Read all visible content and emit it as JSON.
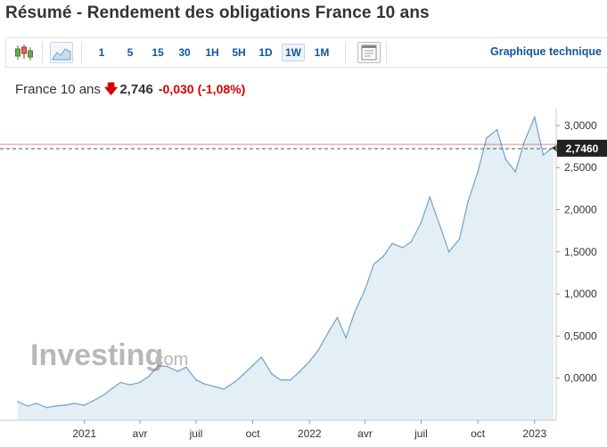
{
  "page_title": "Résumé - Rendement des obligations France 10 ans",
  "toolbar": {
    "candle_icon": "candlestick-chart-icon",
    "area_icon": "area-chart-icon",
    "periods": [
      "1",
      "5",
      "15",
      "30",
      "1H",
      "5H",
      "1D",
      "1W",
      "1M"
    ],
    "active_period": "1W",
    "doc_icon": "document-icon",
    "tech_link": "Graphique technique"
  },
  "quote": {
    "name": "France 10 ans",
    "arrow": "🡇",
    "last": "2,746",
    "change": "-0,030",
    "change_pct": "(-1,08%)"
  },
  "watermark": {
    "brand": "Investing",
    "suffix": ".com"
  },
  "colors": {
    "line": "#6ea3cf",
    "fill": "#e3eef5",
    "negative": "#d40000",
    "link": "#1256a0",
    "last_label_bg": "#222222",
    "reference_line": "#c0392b"
  },
  "chart_data": {
    "type": "area",
    "series": [
      {
        "x": [
          "2020-09-15",
          "2020-10-01",
          "2020-10-15",
          "2020-11-01",
          "2020-11-15",
          "2020-12-01",
          "2020-12-15",
          "2021-01-01",
          "2021-01-15",
          "2021-02-01",
          "2021-02-15",
          "2021-03-01",
          "2021-03-15",
          "2021-04-01",
          "2021-04-15",
          "2021-05-01",
          "2021-05-15",
          "2021-06-01",
          "2021-06-15",
          "2021-07-01",
          "2021-07-15",
          "2021-08-01",
          "2021-08-15",
          "2021-09-01",
          "2021-09-15",
          "2021-10-01",
          "2021-10-15",
          "2021-11-01",
          "2021-11-15",
          "2021-12-01",
          "2021-12-15",
          "2022-01-01",
          "2022-01-15",
          "2022-02-01",
          "2022-02-15",
          "2022-03-01",
          "2022-03-15",
          "2022-04-01",
          "2022-04-15",
          "2022-05-01",
          "2022-05-15",
          "2022-06-01",
          "2022-06-15",
          "2022-07-01",
          "2022-07-15",
          "2022-08-01",
          "2022-08-15",
          "2022-09-01",
          "2022-09-15",
          "2022-10-01",
          "2022-10-15",
          "2022-11-01",
          "2022-11-15",
          "2022-12-01",
          "2022-12-15",
          "2023-01-01",
          "2023-01-15",
          "2023-02-01"
        ],
        "y": [
          -0.28,
          -0.33,
          -0.3,
          -0.35,
          -0.33,
          -0.32,
          -0.3,
          -0.32,
          -0.27,
          -0.2,
          -0.12,
          -0.05,
          -0.08,
          -0.05,
          0.02,
          0.15,
          0.14,
          0.08,
          0.13,
          -0.02,
          -0.07,
          -0.1,
          -0.13,
          -0.05,
          0.04,
          0.15,
          0.25,
          0.05,
          -0.02,
          -0.02,
          0.07,
          0.2,
          0.33,
          0.55,
          0.72,
          0.48,
          0.78,
          1.05,
          1.35,
          1.45,
          1.6,
          1.55,
          1.62,
          1.85,
          2.15,
          1.8,
          1.5,
          1.65,
          2.1,
          2.45,
          2.85,
          2.95,
          2.6,
          2.45,
          2.8,
          3.1,
          2.65,
          2.746
        ]
      }
    ],
    "xlabel": "",
    "ylabel": "",
    "ylim": [
      -0.5,
      3.2
    ],
    "y_ticks": [
      0.0,
      0.5,
      1.0,
      1.5,
      2.0,
      2.5,
      3.0
    ],
    "y_tick_labels": [
      "0,0000",
      "0,5000",
      "1,0000",
      "1,5000",
      "2,0000",
      "2,5000",
      "3,0000"
    ],
    "x_ticks": [
      "2021-01-01",
      "2021-04-01",
      "2021-07-01",
      "2021-10-01",
      "2022-01-01",
      "2022-04-01",
      "2022-07-01",
      "2022-10-01",
      "2023-01-01"
    ],
    "x_tick_labels": [
      "2021",
      "avr",
      "juil",
      "oct",
      "2022",
      "avr",
      "juil",
      "oct",
      "2023"
    ],
    "last_value": 2.746,
    "last_value_label": "2,7460",
    "reference_level": 2.776,
    "grid": false,
    "legend": "none"
  }
}
